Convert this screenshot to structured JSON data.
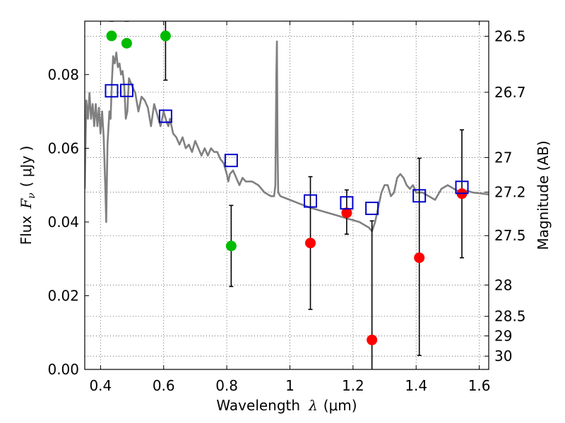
{
  "chart_data": {
    "type": "scatter",
    "title": "",
    "xlabel": "Wavelength",
    "xlabel_symbol": "λ",
    "xlabel_unit": "(μm)",
    "ylabel": "Flux",
    "ylabel_symbol": "F",
    "ylabel_subscript": "ν",
    "ylabel_unit": "( μJy )",
    "y2label": "Magnitude (AB)",
    "xlim": [
      0.35,
      1.63
    ],
    "ylim": [
      0.0,
      0.0945
    ],
    "grid": true,
    "x_ticks": [
      0.4,
      0.6,
      0.8,
      1.0,
      1.2,
      1.4,
      1.6
    ],
    "x_tick_labels": [
      "0.4",
      "0.6",
      "0.8",
      "1",
      "1.2",
      "1.4",
      "1.6"
    ],
    "y_ticks": [
      0.0,
      0.02,
      0.04,
      0.06,
      0.08
    ],
    "y_tick_labels": [
      "0.00",
      "0.02",
      "0.04",
      "0.06",
      "0.08"
    ],
    "y2_ticks": [
      {
        "flux": 0.0904,
        "label": "26.5"
      },
      {
        "flux": 0.0752,
        "label": "26.7"
      },
      {
        "flux": 0.0575,
        "label": "27"
      },
      {
        "flux": 0.0481,
        "label": "27.2"
      },
      {
        "flux": 0.0363,
        "label": "27.5"
      },
      {
        "flux": 0.0229,
        "label": "28"
      },
      {
        "flux": 0.0144,
        "label": "28.5"
      },
      {
        "flux": 0.0091,
        "label": "29"
      },
      {
        "flux": 0.0036,
        "label": "30"
      }
    ],
    "colors": {
      "model": "#808080",
      "observed_green": "#00bb00",
      "observed_red": "#ff0000",
      "model_photometry": "#0000cc",
      "errorbar": "#000000",
      "grid": "#555555"
    },
    "series": [
      {
        "name": "model SED",
        "type": "line",
        "points": [
          [
            0.35,
            0.049
          ],
          [
            0.355,
            0.073
          ],
          [
            0.36,
            0.068
          ],
          [
            0.365,
            0.075
          ],
          [
            0.37,
            0.068
          ],
          [
            0.375,
            0.072
          ],
          [
            0.38,
            0.066
          ],
          [
            0.385,
            0.072
          ],
          [
            0.39,
            0.066
          ],
          [
            0.395,
            0.071
          ],
          [
            0.4,
            0.064
          ],
          [
            0.405,
            0.07
          ],
          [
            0.41,
            0.063
          ],
          [
            0.415,
            0.05
          ],
          [
            0.418,
            0.04
          ],
          [
            0.422,
            0.061
          ],
          [
            0.428,
            0.07
          ],
          [
            0.432,
            0.068
          ],
          [
            0.436,
            0.078
          ],
          [
            0.44,
            0.085
          ],
          [
            0.445,
            0.083
          ],
          [
            0.45,
            0.086
          ],
          [
            0.455,
            0.082
          ],
          [
            0.46,
            0.083
          ],
          [
            0.465,
            0.08
          ],
          [
            0.47,
            0.081
          ],
          [
            0.475,
            0.077
          ],
          [
            0.48,
            0.068
          ],
          [
            0.485,
            0.07
          ],
          [
            0.49,
            0.079
          ],
          [
            0.5,
            0.077
          ],
          [
            0.51,
            0.075
          ],
          [
            0.52,
            0.07
          ],
          [
            0.53,
            0.074
          ],
          [
            0.54,
            0.073
          ],
          [
            0.55,
            0.071
          ],
          [
            0.56,
            0.066
          ],
          [
            0.57,
            0.072
          ],
          [
            0.58,
            0.069
          ],
          [
            0.59,
            0.066
          ],
          [
            0.6,
            0.07
          ],
          [
            0.61,
            0.067
          ],
          [
            0.615,
            0.066
          ],
          [
            0.62,
            0.068
          ],
          [
            0.63,
            0.064
          ],
          [
            0.64,
            0.063
          ],
          [
            0.65,
            0.061
          ],
          [
            0.66,
            0.063
          ],
          [
            0.67,
            0.06
          ],
          [
            0.68,
            0.061
          ],
          [
            0.69,
            0.059
          ],
          [
            0.7,
            0.062
          ],
          [
            0.71,
            0.06
          ],
          [
            0.72,
            0.058
          ],
          [
            0.73,
            0.06
          ],
          [
            0.74,
            0.058
          ],
          [
            0.75,
            0.06
          ],
          [
            0.76,
            0.059
          ],
          [
            0.77,
            0.059
          ],
          [
            0.78,
            0.057
          ],
          [
            0.79,
            0.056
          ],
          [
            0.8,
            0.053
          ],
          [
            0.805,
            0.051
          ],
          [
            0.81,
            0.053
          ],
          [
            0.82,
            0.054
          ],
          [
            0.83,
            0.052
          ],
          [
            0.84,
            0.05
          ],
          [
            0.85,
            0.052
          ],
          [
            0.86,
            0.051
          ],
          [
            0.88,
            0.051
          ],
          [
            0.9,
            0.05
          ],
          [
            0.92,
            0.048
          ],
          [
            0.94,
            0.047
          ],
          [
            0.95,
            0.047
          ],
          [
            0.954,
            0.05
          ],
          [
            0.957,
            0.08
          ],
          [
            0.959,
            0.089
          ],
          [
            0.961,
            0.06
          ],
          [
            0.963,
            0.048
          ],
          [
            0.97,
            0.047
          ],
          [
            1.0,
            0.046
          ],
          [
            1.03,
            0.045
          ],
          [
            1.06,
            0.044
          ],
          [
            1.1,
            0.043
          ],
          [
            1.14,
            0.042
          ],
          [
            1.18,
            0.041
          ],
          [
            1.2,
            0.0405
          ],
          [
            1.22,
            0.04
          ],
          [
            1.24,
            0.039
          ],
          [
            1.25,
            0.0385
          ],
          [
            1.26,
            0.0375
          ],
          [
            1.27,
            0.04
          ],
          [
            1.28,
            0.044
          ],
          [
            1.29,
            0.048
          ],
          [
            1.3,
            0.05
          ],
          [
            1.31,
            0.05
          ],
          [
            1.32,
            0.047
          ],
          [
            1.33,
            0.048
          ],
          [
            1.34,
            0.052
          ],
          [
            1.35,
            0.053
          ],
          [
            1.36,
            0.052
          ],
          [
            1.37,
            0.05
          ],
          [
            1.38,
            0.049
          ],
          [
            1.39,
            0.05
          ],
          [
            1.4,
            0.048
          ],
          [
            1.42,
            0.048
          ],
          [
            1.44,
            0.047
          ],
          [
            1.46,
            0.046
          ],
          [
            1.48,
            0.049
          ],
          [
            1.5,
            0.05
          ],
          [
            1.52,
            0.049
          ],
          [
            1.54,
            0.048
          ],
          [
            1.56,
            0.0485
          ],
          [
            1.58,
            0.048
          ],
          [
            1.6,
            0.0478
          ],
          [
            1.63,
            0.0475
          ]
        ]
      },
      {
        "name": "observed (green)",
        "marker": "circle",
        "x": [
          0.435,
          0.483,
          0.606,
          0.814
        ],
        "y": [
          0.0905,
          0.0885,
          0.0905,
          0.0335
        ],
        "yerr_low": [
          0.0945,
          0.0945,
          0.0785,
          0.0225
        ],
        "yerr_high": [
          0.0945,
          0.0945,
          0.0945,
          0.0445
        ]
      },
      {
        "name": "observed (red)",
        "marker": "circle",
        "x": [
          1.065,
          1.18,
          1.26,
          1.41,
          1.545
        ],
        "y": [
          0.0343,
          0.0425,
          0.008,
          0.0303,
          0.0477
        ],
        "yerr_low": [
          0.0163,
          0.0367,
          0.0,
          0.0038,
          0.0303
        ],
        "yerr_high": [
          0.0523,
          0.0487,
          0.0403,
          0.0573,
          0.065
        ]
      },
      {
        "name": "model photometry",
        "marker": "square-open",
        "x": [
          0.435,
          0.483,
          0.606,
          0.814,
          1.065,
          1.18,
          1.26,
          1.41,
          1.545
        ],
        "y": [
          0.0756,
          0.0757,
          0.0687,
          0.0567,
          0.0457,
          0.0452,
          0.0437,
          0.0471,
          0.0494
        ]
      }
    ]
  }
}
